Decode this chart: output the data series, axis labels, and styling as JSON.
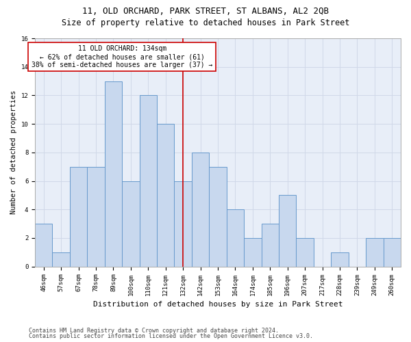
{
  "title1": "11, OLD ORCHARD, PARK STREET, ST ALBANS, AL2 2QB",
  "title2": "Size of property relative to detached houses in Park Street",
  "xlabel": "Distribution of detached houses by size in Park Street",
  "ylabel": "Number of detached properties",
  "categories": [
    "46sqm",
    "57sqm",
    "67sqm",
    "78sqm",
    "89sqm",
    "100sqm",
    "110sqm",
    "121sqm",
    "132sqm",
    "142sqm",
    "153sqm",
    "164sqm",
    "174sqm",
    "185sqm",
    "196sqm",
    "207sqm",
    "217sqm",
    "228sqm",
    "239sqm",
    "249sqm",
    "260sqm"
  ],
  "values": [
    3,
    1,
    7,
    7,
    13,
    6,
    12,
    10,
    6,
    8,
    7,
    4,
    2,
    3,
    5,
    2,
    0,
    1,
    0,
    2,
    2
  ],
  "bar_color": "#c8d8ee",
  "bar_edge_color": "#6699cc",
  "vline_index": 8,
  "vline_color": "#cc0000",
  "annotation_line1": "11 OLD ORCHARD: 134sqm",
  "annotation_line2": "← 62% of detached houses are smaller (61)",
  "annotation_line3": "38% of semi-detached houses are larger (37) →",
  "annotation_box_color": "white",
  "annotation_box_edge": "#cc0000",
  "ylim": [
    0,
    16
  ],
  "yticks": [
    0,
    2,
    4,
    6,
    8,
    10,
    12,
    14,
    16
  ],
  "grid_color": "#d0d8e8",
  "plot_bg_color": "#e8eef8",
  "background_color": "white",
  "footer1": "Contains HM Land Registry data © Crown copyright and database right 2024.",
  "footer2": "Contains public sector information licensed under the Open Government Licence v3.0.",
  "title1_fontsize": 9,
  "title2_fontsize": 8.5,
  "xlabel_fontsize": 8,
  "ylabel_fontsize": 7.5,
  "tick_fontsize": 6.5,
  "annotation_fontsize": 7,
  "footer_fontsize": 6
}
